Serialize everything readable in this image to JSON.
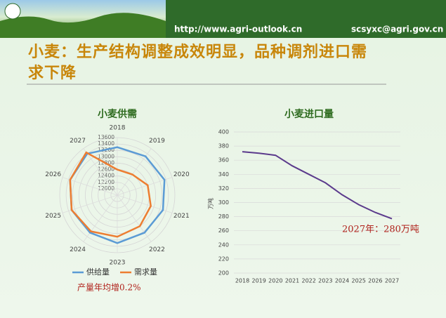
{
  "header": {
    "url": "http://www.agri-outlook.cn",
    "email": "scsyxc@agri.gov.cn"
  },
  "title": "小麦：生产结构调整成效明显，品种调剂进口需求下降",
  "chart_data": [
    {
      "type": "radar",
      "title": "小麦供需",
      "categories": [
        "2018",
        "2019",
        "2020",
        "2021",
        "2022",
        "2023",
        "2024",
        "2025",
        "2026",
        "2027"
      ],
      "rlim": [
        11800,
        13600
      ],
      "rticks": [
        12000,
        12200,
        12400,
        12600,
        12800,
        13000,
        13200,
        13400,
        13600
      ],
      "series": [
        {
          "name": "供给量",
          "color": "#5b9bd5",
          "values": [
            13300,
            13300,
            13350,
            13300,
            13250,
            13300,
            13250,
            13300,
            13350,
            13400
          ]
        },
        {
          "name": "需求量",
          "color": "#ed7d31",
          "values": [
            12600,
            12600,
            12800,
            12900,
            13000,
            13100,
            13200,
            13300,
            13350,
            13450
          ]
        }
      ],
      "annotation": "产量年均增0.2%"
    },
    {
      "type": "line",
      "title": "小麦进口量",
      "y_label": "万吨",
      "categories": [
        "2018",
        "2019",
        "2020",
        "2021",
        "2022",
        "2023",
        "2024",
        "2025",
        "2026",
        "2027"
      ],
      "ylim": [
        200,
        400
      ],
      "yticks": [
        200,
        220,
        240,
        260,
        280,
        300,
        320,
        340,
        360,
        380,
        400
      ],
      "grid": true,
      "series": [
        {
          "name": "进口量",
          "color": "#5b3a8c",
          "values": [
            372,
            370,
            367,
            352,
            340,
            328,
            311,
            297,
            286,
            277
          ]
        }
      ],
      "annotation": "2027年：280万吨"
    }
  ]
}
